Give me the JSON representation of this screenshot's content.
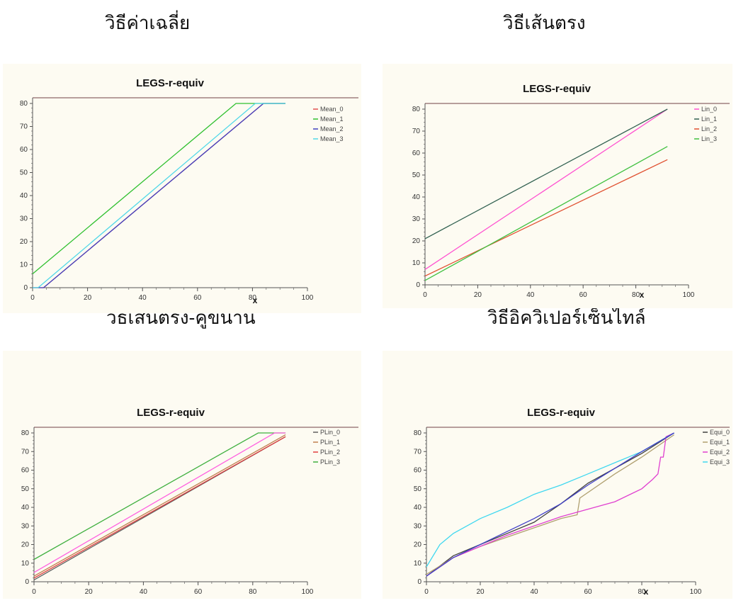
{
  "headings": [
    "วิธีค่าเฉลี่ย",
    "วิธีเส้นตรง",
    "วิธีเส้นตรง-คู่ขนาน",
    "วิธีอิควิเปอร์เซ็นไทล์"
  ],
  "colors": {
    "panel_bg": "#fdfbf2",
    "top_rule": "#a08080",
    "axis": "#555555"
  },
  "chart_data": [
    {
      "type": "line",
      "title": "LEGS-r-equiv",
      "xlabel": "x",
      "ylabel": "",
      "xlim": [
        0,
        100
      ],
      "ylim": [
        0,
        80
      ],
      "x_ticks": [
        0,
        20,
        40,
        60,
        80,
        100
      ],
      "y_ticks": [
        0,
        10,
        20,
        30,
        40,
        50,
        60,
        70,
        80
      ],
      "grid": false,
      "legend": "right",
      "series": [
        {
          "name": "Mean_0",
          "color": "#e05050",
          "points": [
            [
              0,
              0
            ],
            [
              4,
              0
            ],
            [
              84,
              80
            ],
            [
              92,
              80
            ]
          ]
        },
        {
          "name": "Mean_1",
          "color": "#30c030",
          "points": [
            [
              0,
              6
            ],
            [
              74,
              80
            ],
            [
              92,
              80
            ]
          ]
        },
        {
          "name": "Mean_2",
          "color": "#4040c0",
          "points": [
            [
              0,
              0
            ],
            [
              4,
              0
            ],
            [
              84,
              80
            ],
            [
              92,
              80
            ]
          ]
        },
        {
          "name": "Mean_3",
          "color": "#50d8e8",
          "points": [
            [
              0,
              0
            ],
            [
              2,
              0
            ],
            [
              81,
              80
            ],
            [
              92,
              80
            ]
          ]
        }
      ]
    },
    {
      "type": "line",
      "title": "LEGS-r-equiv",
      "xlabel": "x",
      "ylabel": "",
      "xlim": [
        0,
        100
      ],
      "ylim": [
        0,
        80
      ],
      "x_ticks": [
        0,
        20,
        40,
        60,
        80,
        100
      ],
      "y_ticks": [
        0,
        10,
        20,
        30,
        40,
        50,
        60,
        70,
        80
      ],
      "grid": false,
      "legend": "right",
      "series": [
        {
          "name": "Lin_0",
          "color": "#ff50d0",
          "points": [
            [
              0,
              7
            ],
            [
              92,
              80
            ]
          ]
        },
        {
          "name": "Lin_1",
          "color": "#306050",
          "points": [
            [
              0,
              21
            ],
            [
              92,
              80
            ]
          ]
        },
        {
          "name": "Lin_2",
          "color": "#e05030",
          "points": [
            [
              0,
              4
            ],
            [
              92,
              57
            ]
          ]
        },
        {
          "name": "Lin_3",
          "color": "#40c040",
          "points": [
            [
              0,
              2
            ],
            [
              92,
              63
            ]
          ]
        }
      ]
    },
    {
      "type": "line",
      "title": "LEGS-r-equiv",
      "xlabel": "",
      "ylabel": "",
      "xlim": [
        0,
        100
      ],
      "ylim": [
        0,
        80
      ],
      "x_ticks": [
        0,
        20,
        40,
        60,
        80,
        100
      ],
      "y_ticks": [
        0,
        10,
        20,
        30,
        40,
        50,
        60,
        70,
        80
      ],
      "grid": false,
      "legend": "right",
      "series": [
        {
          "name": "PLin_0",
          "color": "#606060",
          "points": [
            [
              0,
              1
            ],
            [
              92,
              78
            ]
          ]
        },
        {
          "name": "PLin_1",
          "color": "#c08050",
          "points": [
            [
              0,
              3
            ],
            [
              92,
              79
            ]
          ]
        },
        {
          "name": "PLin_2",
          "color": "#e04040",
          "points": [
            [
              0,
              2
            ],
            [
              92,
              78
            ]
          ]
        },
        {
          "name": "PLin_3",
          "color": "#40b040",
          "points": [
            [
              0,
              12
            ],
            [
              82,
              80
            ],
            [
              92,
              80
            ]
          ]
        },
        {
          "name": "",
          "color": "#ff60e0",
          "points": [
            [
              0,
              5
            ],
            [
              88,
              80
            ],
            [
              92,
              80
            ]
          ]
        }
      ]
    },
    {
      "type": "line",
      "title": "LEGS-r-equiv",
      "xlabel": "x",
      "ylabel": "",
      "xlim": [
        0,
        100
      ],
      "ylim": [
        0,
        80
      ],
      "x_ticks": [
        0,
        20,
        40,
        60,
        80,
        100
      ],
      "y_ticks": [
        0,
        10,
        20,
        30,
        40,
        50,
        60,
        70,
        80
      ],
      "grid": false,
      "legend": "right",
      "series": [
        {
          "name": "Equi_0",
          "color": "#404040",
          "points": [
            [
              0,
              3
            ],
            [
              10,
              14
            ],
            [
              20,
              20
            ],
            [
              30,
              26
            ],
            [
              40,
              32
            ],
            [
              50,
              42
            ],
            [
              60,
              53
            ],
            [
              70,
              61
            ],
            [
              80,
              69
            ],
            [
              92,
              80
            ]
          ]
        },
        {
          "name": "Equi_1",
          "color": "#b0a070",
          "points": [
            [
              0,
              4
            ],
            [
              10,
              13
            ],
            [
              20,
              19
            ],
            [
              30,
              24
            ],
            [
              40,
              29
            ],
            [
              50,
              34
            ],
            [
              56,
              36
            ],
            [
              57,
              45
            ],
            [
              70,
              58
            ],
            [
              80,
              67
            ],
            [
              92,
              79
            ]
          ]
        },
        {
          "name": "Equi_2",
          "color": "#e040d0",
          "points": [
            [
              0,
              3
            ],
            [
              10,
              13
            ],
            [
              20,
              19
            ],
            [
              30,
              25
            ],
            [
              40,
              30
            ],
            [
              50,
              35
            ],
            [
              60,
              39
            ],
            [
              70,
              43
            ],
            [
              80,
              50
            ],
            [
              84,
              55
            ],
            [
              86,
              58
            ],
            [
              87,
              67
            ],
            [
              88,
              67
            ],
            [
              89,
              78
            ],
            [
              92,
              80
            ]
          ]
        },
        {
          "name": "Equi_3",
          "color": "#40d8f0",
          "points": [
            [
              0,
              8
            ],
            [
              5,
              20
            ],
            [
              10,
              26
            ],
            [
              20,
              34
            ],
            [
              30,
              40
            ],
            [
              40,
              47
            ],
            [
              50,
              52
            ],
            [
              60,
              58
            ],
            [
              70,
              64
            ],
            [
              80,
              70
            ],
            [
              92,
              80
            ]
          ]
        },
        {
          "name": "",
          "color": "#4040c8",
          "points": [
            [
              0,
              3
            ],
            [
              10,
              13
            ],
            [
              20,
              20
            ],
            [
              30,
              27
            ],
            [
              40,
              34
            ],
            [
              50,
              42
            ],
            [
              60,
              52
            ],
            [
              70,
              61
            ],
            [
              80,
              70
            ],
            [
              92,
              80
            ]
          ]
        }
      ]
    }
  ]
}
